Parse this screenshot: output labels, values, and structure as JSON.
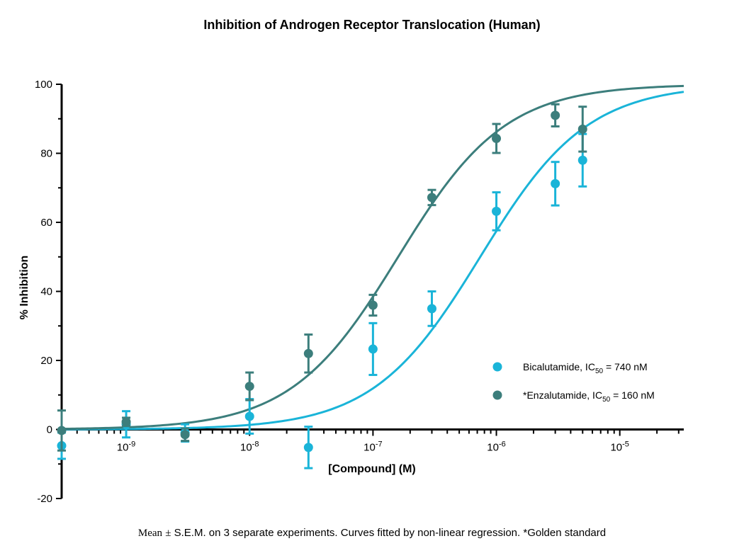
{
  "chart_data": {
    "type": "scatter",
    "title": "Inhibition of Androgen Receptor Translocation (Human)",
    "xlabel": "[Compound] (M)",
    "ylabel": "% Inhibition",
    "x_scale": "log",
    "xlim": [
      3e-10,
      3.3e-05
    ],
    "ylim": [
      -20,
      100
    ],
    "y_ticks": [
      -20,
      0,
      20,
      40,
      60,
      80,
      100
    ],
    "x_ticks": [
      {
        "value": 1e-09,
        "mantissa": "10",
        "exponent": "-9"
      },
      {
        "value": 1e-08,
        "mantissa": "10",
        "exponent": "-8"
      },
      {
        "value": 1e-07,
        "mantissa": "10",
        "exponent": "-7"
      },
      {
        "value": 1e-06,
        "mantissa": "10",
        "exponent": "-6"
      },
      {
        "value": 1e-05,
        "mantissa": "10",
        "exponent": "-5"
      }
    ],
    "grid": false,
    "legend_position": "right",
    "series": [
      {
        "name": "Bicalutamide",
        "legend_prefix": "Bicalutamide, IC",
        "legend_sub": "50",
        "legend_suffix": " = 740 nM",
        "color": "#1ab4d8",
        "ic50": 7.4e-07,
        "bottom": 0,
        "top": 100,
        "hill": 1.0,
        "points": [
          {
            "x": 3e-10,
            "y": -4.7,
            "err": 3.8
          },
          {
            "x": 1e-09,
            "y": 1.5,
            "err": 3.8
          },
          {
            "x": 3e-09,
            "y": -1.0,
            "err": 2.5
          },
          {
            "x": 1e-08,
            "y": 3.8,
            "err": 5.0
          },
          {
            "x": 3e-08,
            "y": -5.2,
            "err": 6.0
          },
          {
            "x": 1e-07,
            "y": 23.3,
            "err": 7.5
          },
          {
            "x": 3e-07,
            "y": 35.0,
            "err": 5.0
          },
          {
            "x": 1e-06,
            "y": 63.2,
            "err": 5.5
          },
          {
            "x": 3e-06,
            "y": 71.2,
            "err": 6.3
          },
          {
            "x": 5e-06,
            "y": 78.0,
            "err": 7.6
          }
        ]
      },
      {
        "name": "*Enzalutamide",
        "legend_prefix": "*Enzalutamide, IC",
        "legend_sub": "50",
        "legend_suffix": " = 160 nM",
        "color": "#3c7e7c",
        "ic50": 1.6e-07,
        "bottom": 0,
        "top": 100,
        "hill": 1.0,
        "points": [
          {
            "x": 3e-10,
            "y": -0.3,
            "err": 5.8
          },
          {
            "x": 1e-09,
            "y": 2.2,
            "err": 1.2
          },
          {
            "x": 3e-09,
            "y": -1.5,
            "err": 1.8
          },
          {
            "x": 1e-08,
            "y": 12.5,
            "err": 4.0
          },
          {
            "x": 3e-08,
            "y": 22.0,
            "err": 5.5
          },
          {
            "x": 1e-07,
            "y": 36.0,
            "err": 3.0
          },
          {
            "x": 3e-07,
            "y": 67.2,
            "err": 2.2
          },
          {
            "x": 1e-06,
            "y": 84.3,
            "err": 4.2
          },
          {
            "x": 3e-06,
            "y": 91.0,
            "err": 3.2
          },
          {
            "x": 5e-06,
            "y": 87.0,
            "err": 6.5
          }
        ]
      }
    ]
  },
  "footnote": {
    "mean": "Mean",
    "pm": "±",
    "rest": " S.E.M. on 3 separate experiments.  Curves fitted by non-linear regression.  *Golden standard"
  }
}
